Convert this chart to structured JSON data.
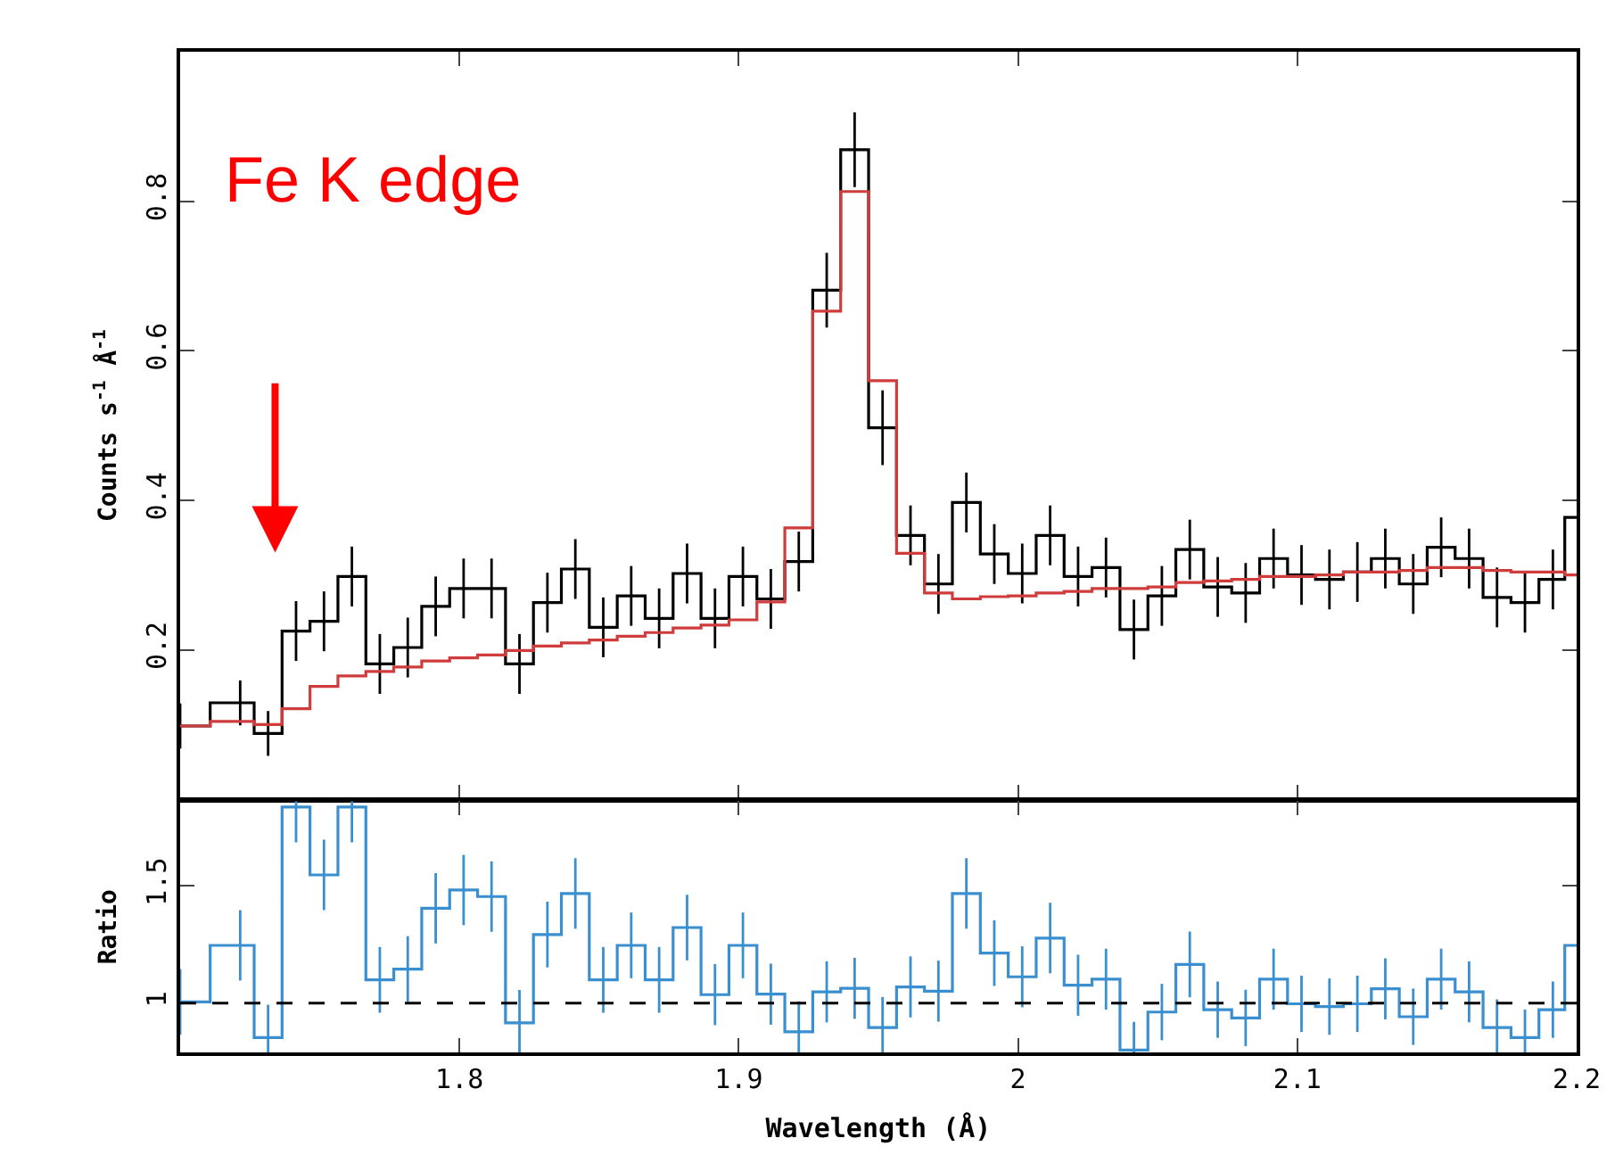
{
  "chart_data": [
    {
      "type": "step",
      "ylabel": "Counts s$^{-1}$ Å$^{-1}$",
      "annotations": [
        "Fe K edge"
      ],
      "x": [
        1.7,
        1.7215,
        1.7315,
        1.7415,
        1.7515,
        1.7615,
        1.7715,
        1.7815,
        1.7915,
        1.8015,
        1.8115,
        1.8215,
        1.8315,
        1.8415,
        1.8515,
        1.8615,
        1.8715,
        1.8815,
        1.8915,
        1.9015,
        1.9115,
        1.9215,
        1.9315,
        1.9415,
        1.9515,
        1.9615,
        1.9715,
        1.9815,
        1.9915,
        2.0015,
        2.0115,
        2.0215,
        2.0315,
        2.0415,
        2.0515,
        2.0615,
        2.0715,
        2.0815,
        2.0915,
        2.1015,
        2.1115,
        2.1215,
        2.1315,
        2.1415,
        2.1515,
        2.1615,
        2.1715,
        2.1815,
        2.1915,
        2.2
      ],
      "series": [
        {
          "color": "#000000",
          "values": [
            0.098,
            0.129,
            0.088,
            0.225,
            0.238,
            0.298,
            0.181,
            0.203,
            0.258,
            0.282,
            0.282,
            0.181,
            0.263,
            0.308,
            0.23,
            0.272,
            0.242,
            0.302,
            0.242,
            0.298,
            0.268,
            0.318,
            0.681,
            0.869,
            0.497,
            0.353,
            0.288,
            0.397,
            0.328,
            0.302,
            0.353,
            0.298,
            0.31,
            0.227,
            0.272,
            0.334,
            0.284,
            0.276,
            0.322,
            0.3,
            0.294,
            0.304,
            0.322,
            0.288,
            0.337,
            0.322,
            0.27,
            0.263,
            0.294,
            0.377
          ],
          "errors": [
            0.03,
            0.03,
            0.03,
            0.04,
            0.04,
            0.04,
            0.04,
            0.04,
            0.04,
            0.04,
            0.04,
            0.04,
            0.04,
            0.04,
            0.04,
            0.04,
            0.04,
            0.04,
            0.04,
            0.04,
            0.04,
            0.04,
            0.05,
            0.05,
            0.05,
            0.04,
            0.04,
            0.04,
            0.04,
            0.04,
            0.04,
            0.04,
            0.04,
            0.04,
            0.04,
            0.04,
            0.04,
            0.04,
            0.04,
            0.04,
            0.04,
            0.04,
            0.04,
            0.04,
            0.04,
            0.04,
            0.04,
            0.04,
            0.04,
            null
          ]
        },
        {
          "color": "#d03c3c",
          "values": [
            0.098,
            0.104,
            0.1,
            0.121,
            0.151,
            0.165,
            0.171,
            0.177,
            0.185,
            0.189,
            0.193,
            0.199,
            0.205,
            0.209,
            0.213,
            0.218,
            0.223,
            0.229,
            0.233,
            0.24,
            0.264,
            0.363,
            0.653,
            0.813,
            0.56,
            0.329,
            0.276,
            0.268,
            0.271,
            0.272,
            0.276,
            0.278,
            0.282,
            0.282,
            0.284,
            0.29,
            0.292,
            0.294,
            0.298,
            0.298,
            0.3,
            0.304,
            0.304,
            0.306,
            0.31,
            0.31,
            0.306,
            0.304,
            0.304,
            0.3
          ]
        }
      ],
      "xlim": [
        1.7,
        2.2
      ],
      "xticks": [
        1.8,
        1.9,
        2,
        2.1,
        2.2
      ],
      "ylim": [
        0,
        1
      ],
      "yticks": [
        0.2,
        0.4,
        0.6,
        0.8
      ],
      "tick_labels": "y",
      "marker": "none",
      "line_style": "solid"
    },
    {
      "type": "step",
      "xlabel": "Wavelength (Å)",
      "ylabel": "Ratio",
      "x": [
        1.7,
        1.7215,
        1.7315,
        1.7415,
        1.7515,
        1.7615,
        1.7715,
        1.7815,
        1.7915,
        1.8015,
        1.8115,
        1.8215,
        1.8315,
        1.8415,
        1.8515,
        1.8615,
        1.8715,
        1.8815,
        1.8915,
        1.9015,
        1.9115,
        1.9215,
        1.9315,
        1.9415,
        1.9515,
        1.9615,
        1.9715,
        1.9815,
        1.9915,
        2.0015,
        2.0115,
        2.0215,
        2.0315,
        2.0415,
        2.0515,
        2.0615,
        2.0715,
        2.0815,
        2.0915,
        2.1015,
        2.1115,
        2.1215,
        2.1315,
        2.1415,
        2.1515,
        2.1615,
        2.1715,
        2.1815,
        2.1915,
        2.2
      ],
      "series": [
        {
          "color": "#3a8fd0",
          "values": [
            1.005,
            1.246,
            0.853,
            1.835,
            1.546,
            1.835,
            1.099,
            1.145,
            1.404,
            1.482,
            1.454,
            0.916,
            1.292,
            1.467,
            1.099,
            1.246,
            1.099,
            1.322,
            1.036,
            1.246,
            1.038,
            0.878,
            1.048,
            1.063,
            0.896,
            1.069,
            1.051,
            1.467,
            1.213,
            1.112,
            1.277,
            1.076,
            1.102,
            0.8,
            0.962,
            1.165,
            0.972,
            0.937,
            1.102,
            0.997,
            0.985,
            0.997,
            1.061,
            0.942,
            1.102,
            1.048,
            0.896,
            0.853,
            0.972,
            1.246
          ],
          "errors": [
            0.14,
            0.15,
            0.14,
            0.15,
            0.15,
            0.15,
            0.14,
            0.14,
            0.15,
            0.15,
            0.15,
            0.14,
            0.14,
            0.15,
            0.14,
            0.14,
            0.14,
            0.14,
            0.13,
            0.14,
            0.13,
            0.13,
            0.13,
            0.13,
            0.13,
            0.13,
            0.13,
            0.15,
            0.14,
            0.13,
            0.15,
            0.13,
            0.13,
            0.12,
            0.12,
            0.14,
            0.12,
            0.12,
            0.13,
            0.12,
            0.12,
            0.12,
            0.13,
            0.12,
            0.13,
            0.13,
            0.12,
            0.12,
            0.12,
            null
          ]
        }
      ],
      "ref_lines": [
        {
          "axis": "y",
          "value": 1,
          "color": "#000000",
          "line_style": "dashed"
        }
      ],
      "xlim": [
        1.7,
        2.2
      ],
      "xticks": [
        1.8,
        1.9,
        2,
        2.1,
        2.2
      ],
      "ylim": [
        0.79,
        1.86
      ],
      "yticks": [
        1,
        1.5
      ],
      "marker": "none",
      "line_style": "solid"
    }
  ]
}
